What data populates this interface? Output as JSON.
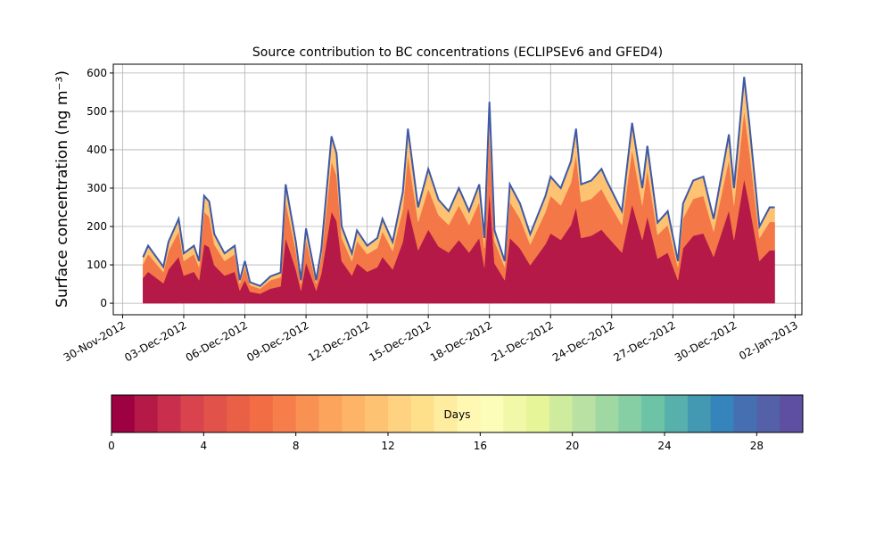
{
  "chart_data": {
    "type": "stacked_area",
    "title": "Source contribution to BC concentrations (ECLIPSEv6 and GFED4)",
    "y_label": "Surface concentration (ng m⁻³)",
    "x": [
      "2012-12-01T00:00",
      "2012-12-01T06:00",
      "2012-12-02T00:00",
      "2012-12-02T06:00",
      "2012-12-02T18:00",
      "2012-12-03T00:00",
      "2012-12-03T12:00",
      "2012-12-03T18:00",
      "2012-12-04T00:00",
      "2012-12-04T06:00",
      "2012-12-04T12:00",
      "2012-12-05T00:00",
      "2012-12-05T06:00",
      "2012-12-05T12:00",
      "2012-12-05T18:00",
      "2012-12-06T00:00",
      "2012-12-06T06:00",
      "2012-12-06T18:00",
      "2012-12-07T06:00",
      "2012-12-07T18:00",
      "2012-12-08T00:00",
      "2012-12-08T12:00",
      "2012-12-08T18:00",
      "2012-12-09T00:00",
      "2012-12-09T12:00",
      "2012-12-09T18:00",
      "2012-12-10T06:00",
      "2012-12-10T12:00",
      "2012-12-10T18:00",
      "2012-12-11T06:00",
      "2012-12-11T12:00",
      "2012-12-12T00:00",
      "2012-12-12T12:00",
      "2012-12-12T18:00",
      "2012-12-13T06:00",
      "2012-12-13T18:00",
      "2012-12-14T00:00",
      "2012-12-14T12:00",
      "2012-12-15T00:00",
      "2012-12-15T12:00",
      "2012-12-16T00:00",
      "2012-12-16T12:00",
      "2012-12-17T00:00",
      "2012-12-17T12:00",
      "2012-12-17T18:00",
      "2012-12-18T00:00",
      "2012-12-18T06:00",
      "2012-12-18T18:00",
      "2012-12-19T00:00",
      "2012-12-19T12:00",
      "2012-12-20T00:00",
      "2012-12-20T18:00",
      "2012-12-21T00:00",
      "2012-12-21T12:00",
      "2012-12-22T00:00",
      "2012-12-22T06:00",
      "2012-12-22T12:00",
      "2012-12-23T00:00",
      "2012-12-23T12:00",
      "2012-12-23T18:00",
      "2012-12-24T12:00",
      "2012-12-25T00:00",
      "2012-12-25T12:00",
      "2012-12-25T18:00",
      "2012-12-26T06:00",
      "2012-12-26T18:00",
      "2012-12-27T06:00",
      "2012-12-27T12:00",
      "2012-12-28T00:00",
      "2012-12-28T12:00",
      "2012-12-29T00:00",
      "2012-12-29T18:00",
      "2012-12-30T00:00",
      "2012-12-30T12:00",
      "2012-12-30T18:00",
      "2012-12-31T06:00",
      "2012-12-31T18:00",
      "2013-01-01T00:00"
    ],
    "series": [
      {
        "color": "#b41947",
        "values": [
          66,
          82,
          52,
          88,
          121,
          72,
          82,
          60,
          154,
          146,
          99,
          72,
          77,
          82,
          33,
          60,
          30,
          25,
          38,
          44,
          170,
          88,
          33,
          107,
          33,
          77,
          239,
          214,
          110,
          72,
          104,
          82,
          94,
          121,
          88,
          160,
          250,
          138,
          192,
          148,
          132,
          165,
          132,
          170,
          94,
          289,
          104,
          60,
          170,
          143,
          99,
          154,
          182,
          165,
          204,
          250,
          170,
          176,
          192,
          176,
          132,
          258,
          165,
          226,
          116,
          132,
          60,
          143,
          176,
          182,
          121,
          242,
          165,
          324,
          258,
          110,
          138,
          138
        ]
      },
      {
        "color": "#f47747",
        "values": [
          36,
          46,
          29,
          48,
          66,
          38,
          46,
          34,
          84,
          79,
          54,
          38,
          42,
          46,
          18,
          34,
          17,
          13,
          22,
          24,
          94,
          48,
          18,
          59,
          18,
          42,
          131,
          118,
          60,
          38,
          58,
          46,
          50,
          66,
          48,
          86,
          137,
          74,
          106,
          82,
          72,
          90,
          72,
          94,
          50,
          157,
          58,
          34,
          94,
          78,
          54,
          84,
          98,
          90,
          110,
          137,
          94,
          96,
          106,
          96,
          72,
          142,
          90,
          122,
          62,
          72,
          34,
          78,
          96,
          98,
          66,
          132,
          90,
          178,
          142,
          60,
          74,
          74
        ]
      },
      {
        "color": "#fdc372",
        "values": [
          18,
          22,
          14,
          24,
          33,
          20,
          22,
          16,
          42,
          40,
          27,
          20,
          21,
          22,
          9,
          16,
          8,
          7,
          10,
          12,
          46,
          24,
          9,
          29,
          9,
          21,
          65,
          58,
          30,
          20,
          28,
          22,
          26,
          33,
          24,
          44,
          68,
          38,
          52,
          40,
          36,
          45,
          36,
          46,
          26,
          79,
          28,
          16,
          46,
          39,
          27,
          42,
          50,
          45,
          56,
          68,
          46,
          48,
          52,
          48,
          36,
          70,
          45,
          62,
          32,
          36,
          16,
          39,
          48,
          50,
          33,
          66,
          45,
          88,
          70,
          30,
          38,
          38
        ]
      }
    ],
    "edge_color": "#3f59a6",
    "xlim": [
      "2012-11-29T13:00",
      "2013-01-02T08:00"
    ],
    "xticks": [
      {
        "value": "2012-11-30T00:00",
        "label": "30-Nov-2012"
      },
      {
        "value": "2012-12-03T00:00",
        "label": "03-Dec-2012"
      },
      {
        "value": "2012-12-06T00:00",
        "label": "06-Dec-2012"
      },
      {
        "value": "2012-12-09T00:00",
        "label": "09-Dec-2012"
      },
      {
        "value": "2012-12-12T00:00",
        "label": "12-Dec-2012"
      },
      {
        "value": "2012-12-15T00:00",
        "label": "15-Dec-2012"
      },
      {
        "value": "2012-12-18T00:00",
        "label": "18-Dec-2012"
      },
      {
        "value": "2012-12-21T00:00",
        "label": "21-Dec-2012"
      },
      {
        "value": "2012-12-24T00:00",
        "label": "24-Dec-2012"
      },
      {
        "value": "2012-12-27T00:00",
        "label": "27-Dec-2012"
      },
      {
        "value": "2012-12-30T00:00",
        "label": "30-Dec-2012"
      },
      {
        "value": "2013-01-02T00:00",
        "label": "02-Jan-2013"
      }
    ],
    "ylim": [
      -30,
      623
    ],
    "yticks": [
      0,
      100,
      200,
      300,
      400,
      500,
      600
    ],
    "grid": true,
    "colorbar": {
      "label": "Days",
      "lim": [
        0,
        30
      ],
      "ticks": [
        0,
        4,
        8,
        12,
        16,
        20,
        24,
        28
      ],
      "colors": [
        "#9e0142",
        "#b41947",
        "#c92f4c",
        "#d8434e",
        "#e0524a",
        "#ea6046",
        "#f26d43",
        "#f57e4a",
        "#f99153",
        "#fca35c",
        "#fdb466",
        "#fdc372",
        "#fed280",
        "#fee08b",
        "#feec9f",
        "#fff8b3",
        "#fbfdb8",
        "#f1f9a8",
        "#e6f598",
        "#cfeb9e",
        "#b8e1a3",
        "#a0d8a4",
        "#86cea4",
        "#6cc3a5",
        "#57b0ab",
        "#4399b2",
        "#3584bb",
        "#456fb0",
        "#5460a8",
        "#5e4fa2"
      ]
    }
  }
}
